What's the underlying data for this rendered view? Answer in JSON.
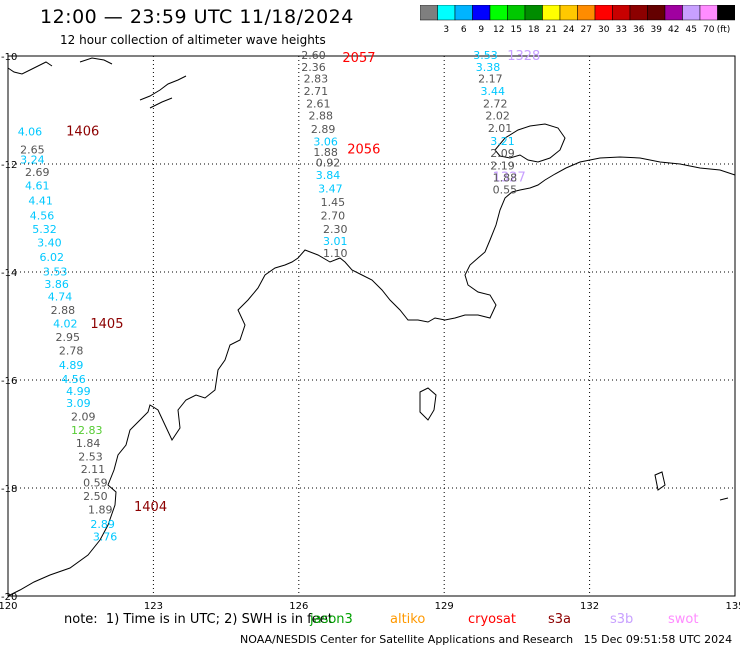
{
  "header": {
    "title": "12:00 — 23:59 UTC 11/18/2024",
    "subtitle": "12 hour collection of altimeter wave heights"
  },
  "scale": {
    "colors": [
      "#7f7f7f",
      "#00ffff",
      "#00b4ff",
      "#0000ff",
      "#00ff00",
      "#00c800",
      "#008c00",
      "#ffff00",
      "#ffc800",
      "#ff8c00",
      "#ff0000",
      "#c80000",
      "#8c0000",
      "#640000",
      "#a000a0",
      "#c8a0ff",
      "#ff8cff",
      "#000000"
    ],
    "labels": [
      "3",
      "6",
      "9",
      "12",
      "15",
      "18",
      "21",
      "24",
      "27",
      "30",
      "33",
      "36",
      "39",
      "42",
      "45",
      "70"
    ],
    "unit": "(ft)"
  },
  "map": {
    "lon_range": [
      120,
      135
    ],
    "lat_range": [
      -20,
      -10
    ],
    "lon_ticks": [
      "120",
      "123",
      "126",
      "129",
      "132",
      "135"
    ],
    "lat_ticks": [
      "-10",
      "-12",
      "-14",
      "-16",
      "-18",
      "-20"
    ],
    "grid": "dotted",
    "track_labels": [
      {
        "text": "1406",
        "lon": 121.2,
        "lat": -11.4,
        "color": "#8c0000"
      },
      {
        "text": "1405",
        "lon": 121.7,
        "lat": -14.96,
        "color": "#8c0000"
      },
      {
        "text": "1404",
        "lon": 122.6,
        "lat": -18.35,
        "color": "#8c0000"
      },
      {
        "text": "2057",
        "lon": 126.9,
        "lat": -10.04,
        "color": "#ff0000"
      },
      {
        "text": "2056",
        "lon": 127.0,
        "lat": -11.73,
        "color": "#ff0000"
      },
      {
        "text": "1328",
        "lon": 130.3,
        "lat": -10.0,
        "color": "#c8a0ff"
      },
      {
        "text": "1327",
        "lon": 130.0,
        "lat": -12.25,
        "color": "#c8a0ff"
      }
    ],
    "wave_labels": [
      {
        "v": "4.06",
        "c": "#00c8ff",
        "lon": 120.2,
        "lat": -11.4
      },
      {
        "v": "2.65",
        "c": "#555555",
        "lon": 120.25,
        "lat": -11.73
      },
      {
        "v": "3.24",
        "c": "#00c8ff",
        "lon": 120.25,
        "lat": -11.92
      },
      {
        "v": "2.69",
        "c": "#555555",
        "lon": 120.35,
        "lat": -12.15
      },
      {
        "v": "4.61",
        "c": "#00c8ff",
        "lon": 120.35,
        "lat": -12.4
      },
      {
        "v": "4.41",
        "c": "#00c8ff",
        "lon": 120.42,
        "lat": -12.68
      },
      {
        "v": "4.56",
        "c": "#00c8ff",
        "lon": 120.45,
        "lat": -12.95
      },
      {
        "v": "5.32",
        "c": "#00c8ff",
        "lon": 120.5,
        "lat": -13.2
      },
      {
        "v": "3.40",
        "c": "#00c8ff",
        "lon": 120.6,
        "lat": -13.45
      },
      {
        "v": "6.02",
        "c": "#00c8ff",
        "lon": 120.65,
        "lat": -13.72
      },
      {
        "v": "3.53",
        "c": "#00c8ff",
        "lon": 120.72,
        "lat": -13.99
      },
      {
        "v": "3.86",
        "c": "#00c8ff",
        "lon": 120.75,
        "lat": -14.22
      },
      {
        "v": "4.74",
        "c": "#00c8ff",
        "lon": 120.82,
        "lat": -14.45
      },
      {
        "v": "2.88",
        "c": "#555555",
        "lon": 120.88,
        "lat": -14.7
      },
      {
        "v": "4.02",
        "c": "#00c8ff",
        "lon": 120.93,
        "lat": -14.95
      },
      {
        "v": "2.95",
        "c": "#555555",
        "lon": 120.98,
        "lat": -15.2
      },
      {
        "v": "2.78",
        "c": "#555555",
        "lon": 121.05,
        "lat": -15.45
      },
      {
        "v": "4.89",
        "c": "#00c8ff",
        "lon": 121.05,
        "lat": -15.72
      },
      {
        "v": "4.56",
        "c": "#00c8ff",
        "lon": 121.1,
        "lat": -15.98
      },
      {
        "v": "4.99",
        "c": "#00c8ff",
        "lon": 121.2,
        "lat": -16.2
      },
      {
        "v": "3.09",
        "c": "#00c8ff",
        "lon": 121.2,
        "lat": -16.43
      },
      {
        "v": "2.09",
        "c": "#555555",
        "lon": 121.3,
        "lat": -16.68
      },
      {
        "v": "12.83",
        "c": "#55cc33",
        "lon": 121.3,
        "lat": -16.93
      },
      {
        "v": "1.84",
        "c": "#555555",
        "lon": 121.4,
        "lat": -17.17
      },
      {
        "v": "2.53",
        "c": "#555555",
        "lon": 121.45,
        "lat": -17.42
      },
      {
        "v": "2.11",
        "c": "#555555",
        "lon": 121.5,
        "lat": -17.65
      },
      {
        "v": "0.59",
        "c": "#555555",
        "lon": 121.55,
        "lat": -17.9
      },
      {
        "v": "2.50",
        "c": "#555555",
        "lon": 121.55,
        "lat": -18.15
      },
      {
        "v": "1.89",
        "c": "#555555",
        "lon": 121.65,
        "lat": -18.4
      },
      {
        "v": "2.89",
        "c": "#00c8ff",
        "lon": 121.7,
        "lat": -18.67
      },
      {
        "v": "3.76",
        "c": "#00c8ff",
        "lon": 121.75,
        "lat": -18.9
      },
      {
        "v": "2.60",
        "c": "#555555",
        "lon": 126.05,
        "lat": -9.98
      },
      {
        "v": "2.36",
        "c": "#555555",
        "lon": 126.05,
        "lat": -10.2
      },
      {
        "v": "2.83",
        "c": "#555555",
        "lon": 126.1,
        "lat": -10.42
      },
      {
        "v": "2.71",
        "c": "#555555",
        "lon": 126.1,
        "lat": -10.65
      },
      {
        "v": "2.61",
        "c": "#555555",
        "lon": 126.15,
        "lat": -10.88
      },
      {
        "v": "2.88",
        "c": "#555555",
        "lon": 126.2,
        "lat": -11.1
      },
      {
        "v": "2.89",
        "c": "#555555",
        "lon": 126.25,
        "lat": -11.35
      },
      {
        "v": "3.06",
        "c": "#00c8ff",
        "lon": 126.3,
        "lat": -11.58
      },
      {
        "v": "1.88",
        "c": "#555555",
        "lon": 126.3,
        "lat": -11.78
      },
      {
        "v": "0.92",
        "c": "#555555",
        "lon": 126.35,
        "lat": -11.97
      },
      {
        "v": "3.84",
        "c": "#00c8ff",
        "lon": 126.35,
        "lat": -12.2
      },
      {
        "v": "3.47",
        "c": "#00c8ff",
        "lon": 126.4,
        "lat": -12.45
      },
      {
        "v": "1.45",
        "c": "#555555",
        "lon": 126.45,
        "lat": -12.7
      },
      {
        "v": "2.70",
        "c": "#555555",
        "lon": 126.45,
        "lat": -12.95
      },
      {
        "v": "2.30",
        "c": "#555555",
        "lon": 126.5,
        "lat": -13.2
      },
      {
        "v": "3.01",
        "c": "#00c8ff",
        "lon": 126.5,
        "lat": -13.43
      },
      {
        "v": "1.10",
        "c": "#555555",
        "lon": 126.5,
        "lat": -13.65
      },
      {
        "v": "3.53",
        "c": "#00c8ff",
        "lon": 129.6,
        "lat": -9.98
      },
      {
        "v": "3.38",
        "c": "#00c8ff",
        "lon": 129.65,
        "lat": -10.2
      },
      {
        "v": "2.17",
        "c": "#555555",
        "lon": 129.7,
        "lat": -10.42
      },
      {
        "v": "3.44",
        "c": "#00c8ff",
        "lon": 129.75,
        "lat": -10.65
      },
      {
        "v": "2.72",
        "c": "#555555",
        "lon": 129.8,
        "lat": -10.88
      },
      {
        "v": "2.02",
        "c": "#555555",
        "lon": 129.85,
        "lat": -11.1
      },
      {
        "v": "2.01",
        "c": "#555555",
        "lon": 129.9,
        "lat": -11.33
      },
      {
        "v": "3.21",
        "c": "#00c8ff",
        "lon": 129.95,
        "lat": -11.57
      },
      {
        "v": "2.09",
        "c": "#555555",
        "lon": 129.95,
        "lat": -11.8
      },
      {
        "v": "2.19",
        "c": "#555555",
        "lon": 129.95,
        "lat": -12.03
      },
      {
        "v": "1.88",
        "c": "#555555",
        "lon": 130.0,
        "lat": -12.25
      },
      {
        "v": "0.55",
        "c": "#555555",
        "lon": 130.0,
        "lat": -12.47
      }
    ]
  },
  "legend": {
    "note": "note:  1) Time is in UTC; 2) SWH is in feet",
    "satellites": [
      {
        "name": "jason3",
        "color": "#00a000"
      },
      {
        "name": "altiko",
        "color": "#ff9900"
      },
      {
        "name": "cryosat",
        "color": "#ff0000"
      },
      {
        "name": "s3a",
        "color": "#8c0000"
      },
      {
        "name": "s3b",
        "color": "#c8a0ff"
      },
      {
        "name": "swot",
        "color": "#ff8cff"
      }
    ]
  },
  "footer": {
    "credit": "NOAA/NESDIS Center for Satellite Applications and Research",
    "timestamp": "15 Dec 09:51:58 UTC 2024"
  }
}
